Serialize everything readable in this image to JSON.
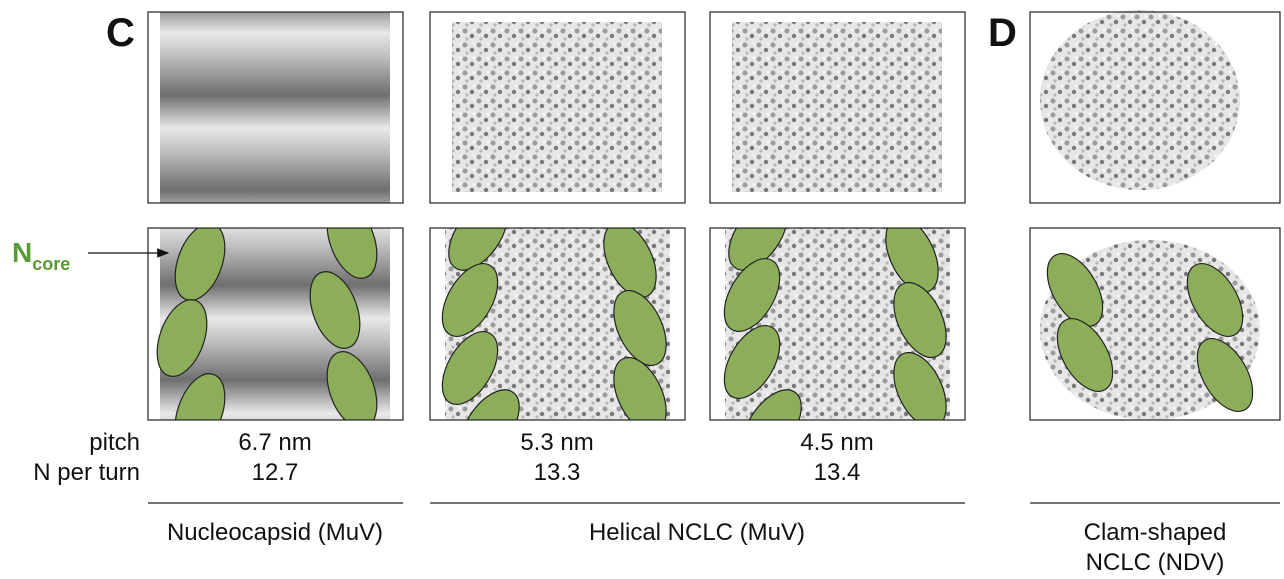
{
  "panels": [
    {
      "label": "C"
    },
    {
      "label": "D"
    }
  ],
  "annotation": {
    "text": "N",
    "subscript": "core"
  },
  "row_labels": [
    "pitch",
    "N per turn"
  ],
  "columns": [
    {
      "pitch": "6.7 nm",
      "n_per_turn": "12.7"
    },
    {
      "pitch": "5.3 nm",
      "n_per_turn": "13.3"
    },
    {
      "pitch": "4.5 nm",
      "n_per_turn": "13.4"
    }
  ],
  "groups": [
    {
      "label": [
        "Nucleocapsid (MuV)"
      ]
    },
    {
      "label": [
        "Helical NCLC (MuV)"
      ]
    },
    {
      "label": [
        "Clam-shaped",
        "NCLC (NDV)"
      ]
    }
  ]
}
